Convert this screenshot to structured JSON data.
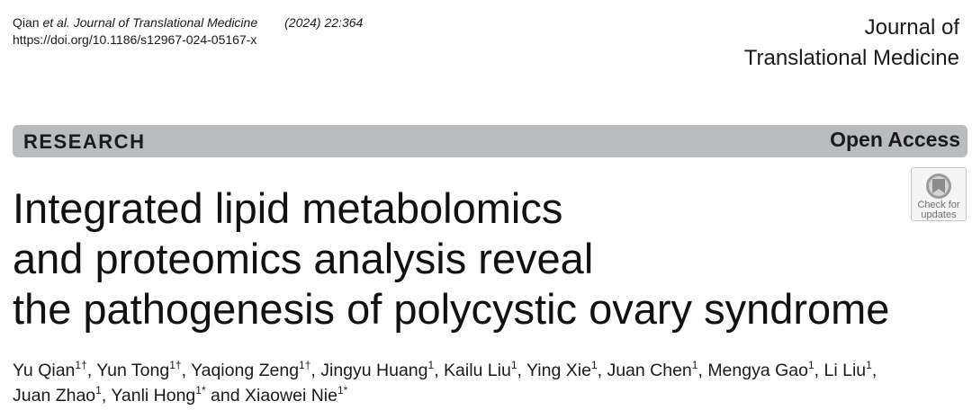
{
  "citation": {
    "authors_short": "Qian ",
    "et_al": "et al. Journal of Translational Medicine",
    "year_vol": "(2024) 22:364",
    "doi": "https://doi.org/10.1186/s12967-024-05167-x"
  },
  "journal": {
    "line1": "Journal of",
    "line2": "Translational Medicine"
  },
  "banner": {
    "article_type": "RESEARCH",
    "access": "Open Access",
    "color": "#b9bcbf"
  },
  "badge": {
    "line1": "Check for",
    "line2": "updates",
    "icon": "check-for-updates-icon"
  },
  "title": {
    "line1": "Integrated lipid metabolomics",
    "line2": "and proteomics analysis reveal",
    "line3": "the pathogenesis of polycystic ovary syndrome"
  },
  "authors": [
    {
      "name": "Yu Qian",
      "sup": "1†",
      "sep": ", "
    },
    {
      "name": "Yun Tong",
      "sup": "1†",
      "sep": ", "
    },
    {
      "name": "Yaqiong Zeng",
      "sup": "1†",
      "sep": ", "
    },
    {
      "name": "Jingyu Huang",
      "sup": "1",
      "sep": ", "
    },
    {
      "name": "Kailu Liu",
      "sup": "1",
      "sep": ", "
    },
    {
      "name": "Ying Xie",
      "sup": "1",
      "sep": ", "
    },
    {
      "name": "Juan Chen",
      "sup": "1",
      "sep": ", "
    },
    {
      "name": "Mengya Gao",
      "sup": "1",
      "sep": ", "
    },
    {
      "name": "Li Liu",
      "sup": "1",
      "sep": ", "
    },
    {
      "name": "Juan Zhao",
      "sup": "1",
      "sep": ", "
    },
    {
      "name": "Yanli Hong",
      "sup": "1*",
      "sep": " and "
    },
    {
      "name": "Xiaowei Nie",
      "sup": "1*",
      "sep": ""
    }
  ]
}
